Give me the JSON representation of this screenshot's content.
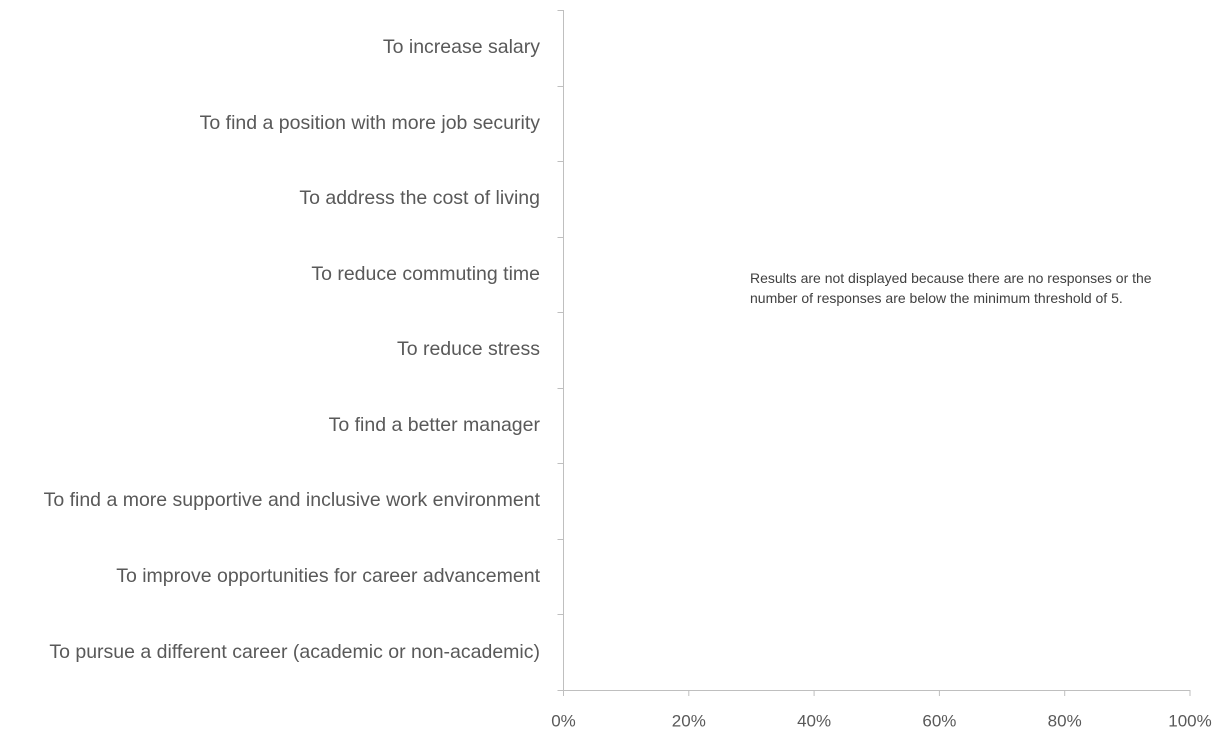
{
  "chart_data": {
    "type": "bar",
    "orientation": "horizontal",
    "categories": [
      "To increase salary",
      "To find a position with more job security",
      "To address the cost of living",
      "To reduce commuting time",
      "To reduce stress",
      "To find a better manager",
      "To find a more supportive and inclusive work environment",
      "To improve opportunities for career advancement",
      "To pursue a different career (academic or non-academic)"
    ],
    "xlim": [
      0,
      100
    ],
    "xticks": [
      {
        "value": 0,
        "label": "0%"
      },
      {
        "value": 20,
        "label": "20%"
      },
      {
        "value": 40,
        "label": "40%"
      },
      {
        "value": 60,
        "label": "60%"
      },
      {
        "value": 80,
        "label": "80%"
      },
      {
        "value": 100,
        "label": "100%"
      }
    ],
    "annotation": "Results are not displayed because there are no responses or the number of responses are below the minimum threshold of 5."
  }
}
